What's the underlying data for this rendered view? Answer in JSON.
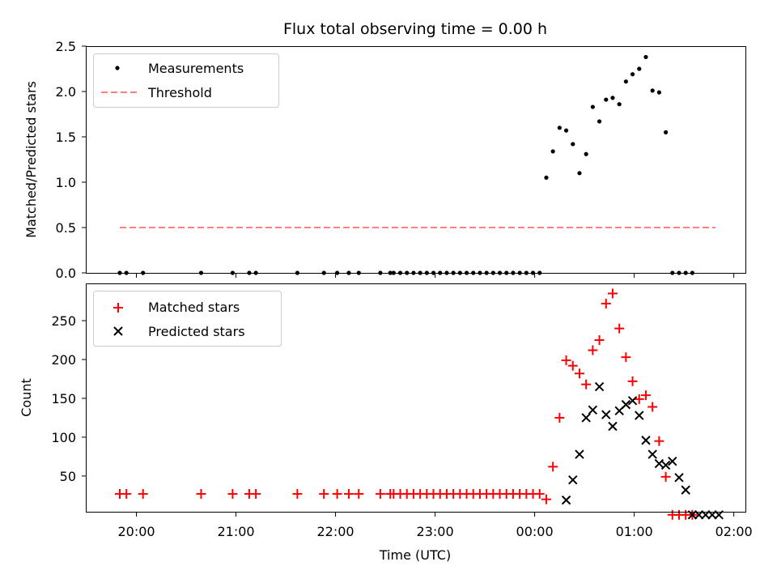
{
  "chart_data": [
    {
      "type": "scatter",
      "title": "Flux total observing time = 0.00 h",
      "xlabel": "",
      "ylabel": "Matched/Predicted stars",
      "ylim": [
        0,
        2.5
      ],
      "yticks": [
        "0.0",
        "0.5",
        "1.0",
        "1.5",
        "2.0",
        "2.5"
      ],
      "legend": {
        "position": "top-left",
        "entries": [
          "Measurements",
          "Threshold"
        ]
      },
      "grid": false,
      "series": [
        {
          "name": "Measurements",
          "marker": "dot",
          "color": "#000000",
          "x": [
            "19:50",
            "19:54",
            "20:04",
            "20:39",
            "20:58",
            "21:08",
            "21:12",
            "21:37",
            "21:53",
            "22:01",
            "22:08",
            "22:14",
            "22:27",
            "22:33",
            "22:35",
            "22:39",
            "22:43",
            "22:47",
            "22:51",
            "22:55",
            "22:59",
            "23:03",
            "23:07",
            "23:11",
            "23:15",
            "23:19",
            "23:23",
            "23:27",
            "23:31",
            "23:35",
            "23:39",
            "23:43",
            "23:47",
            "23:51",
            "23:55",
            "23:59",
            "00:03",
            "00:07",
            "00:11",
            "00:15",
            "00:19",
            "00:23",
            "00:27",
            "00:31",
            "00:35",
            "00:39",
            "00:43",
            "00:47",
            "00:51",
            "00:55",
            "00:59",
            "01:03",
            "01:07",
            "01:11",
            "01:15",
            "01:19",
            "01:23",
            "01:27",
            "01:31",
            "01:35"
          ],
          "y": [
            0,
            0,
            0,
            0,
            0,
            0,
            0,
            0,
            0,
            0,
            0,
            0,
            0,
            0,
            0,
            0,
            0,
            0,
            0,
            0,
            0,
            0,
            0,
            0,
            0,
            0,
            0,
            0,
            0,
            0,
            0,
            0,
            0,
            0,
            0,
            0,
            0,
            1.05,
            1.34,
            1.6,
            1.57,
            1.42,
            1.1,
            1.31,
            1.83,
            1.67,
            1.91,
            1.93,
            1.86,
            2.11,
            2.19,
            2.25,
            2.38,
            2.01,
            1.99,
            1.55,
            0,
            0,
            0,
            0
          ]
        },
        {
          "name": "Threshold",
          "style": "dashed",
          "color": "#ff7f7f",
          "x": [
            "19:50",
            "01:49"
          ],
          "y": [
            0.5,
            0.5
          ]
        }
      ]
    },
    {
      "type": "scatter",
      "xlabel": "Time (UTC)",
      "ylabel": "Count",
      "ylim": [
        4,
        298
      ],
      "xlim": [
        "19:30",
        "02:07"
      ],
      "xticks": [
        "20:00",
        "21:00",
        "22:00",
        "23:00",
        "00:00",
        "01:00",
        "02:00"
      ],
      "yticks": [
        "50",
        "100",
        "150",
        "200",
        "250"
      ],
      "legend": {
        "position": "top-left",
        "entries": [
          "Matched stars",
          "Predicted stars"
        ]
      },
      "grid": false,
      "series": [
        {
          "name": "Matched stars",
          "marker": "plus",
          "color": "#ff0000",
          "x": [
            "19:50",
            "19:54",
            "20:04",
            "20:39",
            "20:58",
            "21:08",
            "21:12",
            "21:37",
            "21:53",
            "22:01",
            "22:08",
            "22:14",
            "22:27",
            "22:33",
            "22:35",
            "22:39",
            "22:43",
            "22:47",
            "22:51",
            "22:55",
            "22:59",
            "23:03",
            "23:07",
            "23:11",
            "23:15",
            "23:19",
            "23:23",
            "23:27",
            "23:31",
            "23:35",
            "23:39",
            "23:43",
            "23:47",
            "23:51",
            "23:55",
            "23:59",
            "00:03",
            "00:07",
            "00:11",
            "00:15",
            "00:19",
            "00:23",
            "00:27",
            "00:31",
            "00:35",
            "00:39",
            "00:43",
            "00:47",
            "00:51",
            "00:55",
            "00:59",
            "01:03",
            "01:07",
            "01:11",
            "01:15",
            "01:19",
            "01:23",
            "01:27",
            "01:31",
            "01:35"
          ],
          "y": [
            27,
            27,
            27,
            27,
            27,
            27,
            27,
            27,
            27,
            27,
            27,
            27,
            27,
            27,
            27,
            27,
            27,
            27,
            27,
            27,
            27,
            27,
            27,
            27,
            27,
            27,
            27,
            27,
            27,
            27,
            27,
            27,
            27,
            27,
            27,
            27,
            27,
            20,
            62,
            125,
            199,
            192,
            182,
            168,
            212,
            225,
            272,
            285,
            240,
            203,
            172,
            149,
            154,
            139,
            95,
            49,
            0,
            0,
            0,
            0
          ]
        },
        {
          "name": "Predicted stars",
          "marker": "x",
          "color": "#000000",
          "x": [
            "00:19",
            "00:23",
            "00:27",
            "00:31",
            "00:35",
            "00:39",
            "00:43",
            "00:47",
            "00:51",
            "00:55",
            "00:59",
            "01:03",
            "01:07",
            "01:11",
            "01:15",
            "01:19",
            "01:23",
            "01:27",
            "01:31",
            "01:35",
            "01:39",
            "01:43",
            "01:47",
            "01:51"
          ],
          "y": [
            19,
            45,
            78,
            125,
            135,
            165,
            129,
            114,
            134,
            142,
            147,
            128,
            96,
            78,
            66,
            64,
            69,
            48,
            32,
            0,
            0,
            0,
            0,
            0
          ]
        }
      ]
    }
  ]
}
